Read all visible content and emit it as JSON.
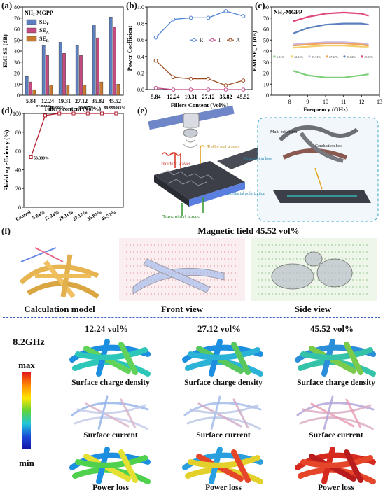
{
  "panel_labels": [
    "(a)",
    "(b)",
    "(c)",
    "(d)",
    "(e)",
    "(f)"
  ],
  "chart_data": [
    {
      "id": "a",
      "type": "bar",
      "title": "NH₂-MGPP",
      "xlabel": "Fillers content (Vol%)",
      "ylabel": "EMI SE (dB)",
      "categories": [
        "5.84",
        "12.24",
        "19.31",
        "27.12",
        "35.82",
        "45.52"
      ],
      "ylim": [
        0,
        80
      ],
      "yticks": [
        0,
        10,
        20,
        30,
        40,
        50,
        60,
        70,
        80
      ],
      "series": [
        {
          "name": "SE_T",
          "color": "#5b7fbf",
          "values": [
            17,
            45,
            48,
            45,
            64,
            71
          ]
        },
        {
          "name": "SE_A",
          "color": "#c24a7e",
          "values": [
            12,
            36,
            38,
            36,
            52,
            62
          ]
        },
        {
          "name": "SE_R",
          "color": "#c97a2e",
          "values": [
            5,
            9,
            9,
            9,
            12,
            10
          ]
        }
      ]
    },
    {
      "id": "b",
      "type": "line",
      "xlabel": "Fillers Content (Vol%)",
      "ylabel": "Power Coefficient",
      "categories": [
        "5.84",
        "12.24",
        "19.31",
        "27.12",
        "35.82",
        "45.52"
      ],
      "ylim": [
        0,
        1.0
      ],
      "yticks": [
        0.0,
        0.2,
        0.4,
        0.6,
        0.8,
        1.0
      ],
      "series": [
        {
          "name": "R",
          "color": "#4a7fd4",
          "values": [
            0.63,
            0.85,
            0.87,
            0.87,
            0.95,
            0.89
          ]
        },
        {
          "name": "T",
          "color": "#c24a8a",
          "values": [
            0.02,
            0.0,
            0.0,
            0.0,
            0.0,
            0.0
          ]
        },
        {
          "name": "A",
          "color": "#9a4a1e",
          "values": [
            0.35,
            0.15,
            0.13,
            0.13,
            0.05,
            0.11
          ]
        }
      ]
    },
    {
      "id": "c",
      "type": "line",
      "title": "NH₂-MGPP",
      "xlabel": "Frequency (GHz)",
      "ylabel": "EMI SE_T (dB)",
      "xlim": [
        7,
        13
      ],
      "xticks": [
        8,
        9,
        10,
        11,
        12,
        13
      ],
      "ylim": [
        0,
        80
      ],
      "yticks": [
        0,
        10,
        20,
        30,
        40,
        50,
        60,
        70,
        80
      ],
      "series": [
        {
          "name": "5.84%",
          "color": "#7fcf7a",
          "x": [
            8.2,
            9,
            10,
            11,
            12,
            12.4
          ],
          "values": [
            22,
            18,
            16,
            16,
            18,
            19
          ]
        },
        {
          "name": "12.24%",
          "color": "#f2cf6a",
          "x": [
            8.2,
            9,
            10,
            11,
            12,
            12.4
          ],
          "values": [
            43,
            44,
            45,
            45,
            44,
            44
          ]
        },
        {
          "name": "19.31%",
          "color": "#c9b6e4",
          "x": [
            8.2,
            9,
            10,
            11,
            12,
            12.4
          ],
          "values": [
            46,
            47,
            48,
            48,
            47,
            46
          ]
        },
        {
          "name": "27.12%",
          "color": "#f0a35a",
          "x": [
            8.2,
            9,
            10,
            11,
            12,
            12.4
          ],
          "values": [
            45,
            46,
            47,
            47,
            46,
            45
          ]
        },
        {
          "name": "35.82%",
          "color": "#5b7fbf",
          "x": [
            8.2,
            9,
            10,
            11,
            12,
            12.4
          ],
          "values": [
            56,
            61,
            64,
            65,
            65,
            64
          ]
        },
        {
          "name": "45.52%",
          "color": "#e0457a",
          "x": [
            8.2,
            9,
            10,
            11,
            12,
            12.4
          ],
          "values": [
            67,
            71,
            74,
            75,
            74,
            72
          ]
        }
      ]
    },
    {
      "id": "d",
      "type": "line",
      "ylabel": "Shielding efficiency (%)",
      "categories": [
        "Control",
        "5.84%",
        "12.24%",
        "19.31%",
        "27.12%",
        "35.82%",
        "45.52%"
      ],
      "ylim": [
        0,
        100
      ],
      "yticks": [
        0,
        20,
        40,
        60,
        80,
        100
      ],
      "series": [
        {
          "name": "",
          "color": "#b21e2e",
          "values": [
            53.38,
            97.838,
            99.996,
            99.998,
            99.997,
            99.99997,
            99.999993
          ]
        }
      ],
      "point_labels": [
        "53.380%",
        "97.838%",
        "99.996%",
        "99.998%",
        "99.997%",
        "99.99997%",
        "99.999993%"
      ]
    }
  ],
  "panel_e": {
    "labels": [
      "Incident waves",
      "Reflected waves",
      "Transmitted waves",
      "Multi-reflection",
      "Conduction loss",
      "Polarization loss",
      "Interfacial polarization"
    ]
  },
  "panel_f": {
    "header": "Magnetic field 45.52 vol%",
    "views": [
      "Calculation model",
      "Front view",
      "Side view"
    ],
    "frequency": "8.2GHz",
    "colorbar": {
      "max": "max",
      "min": "min"
    },
    "volumes": [
      "12.24 vol%",
      "27.12 vol%",
      "45.52 vol%"
    ],
    "rows": [
      "Surface charge density",
      "Surface current",
      "Power loss"
    ]
  }
}
